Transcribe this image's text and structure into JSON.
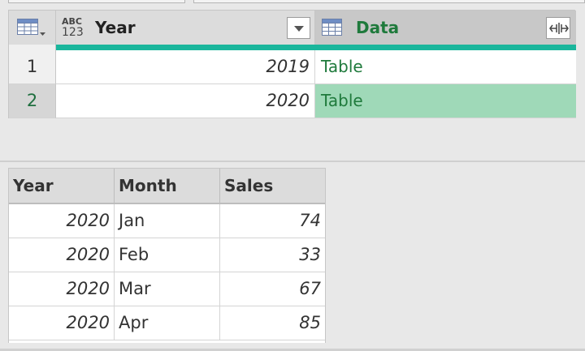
{
  "query_table": {
    "columns": [
      {
        "type_icon": "abc-123-type-icon",
        "type_text_top": "ABC",
        "type_text_bottom": "123",
        "label": "Year"
      },
      {
        "type_icon": "table-type-icon",
        "label": "Data"
      }
    ],
    "rows": [
      {
        "index": "1",
        "year": "2019",
        "data": "Table",
        "selected": false
      },
      {
        "index": "2",
        "year": "2020",
        "data": "Table",
        "selected": true
      }
    ]
  },
  "preview_table": {
    "columns": [
      "Year",
      "Month",
      "Sales"
    ],
    "rows": [
      [
        "2020",
        "Jan",
        "74"
      ],
      [
        "2020",
        "Feb",
        "33"
      ],
      [
        "2020",
        "Mar",
        "67"
      ],
      [
        "2020",
        "Apr",
        "85"
      ]
    ]
  },
  "colors": {
    "accent_teal": "#1ab69c",
    "data_text_green": "#1f7a3c",
    "selected_cell": "#9fd9b8"
  }
}
